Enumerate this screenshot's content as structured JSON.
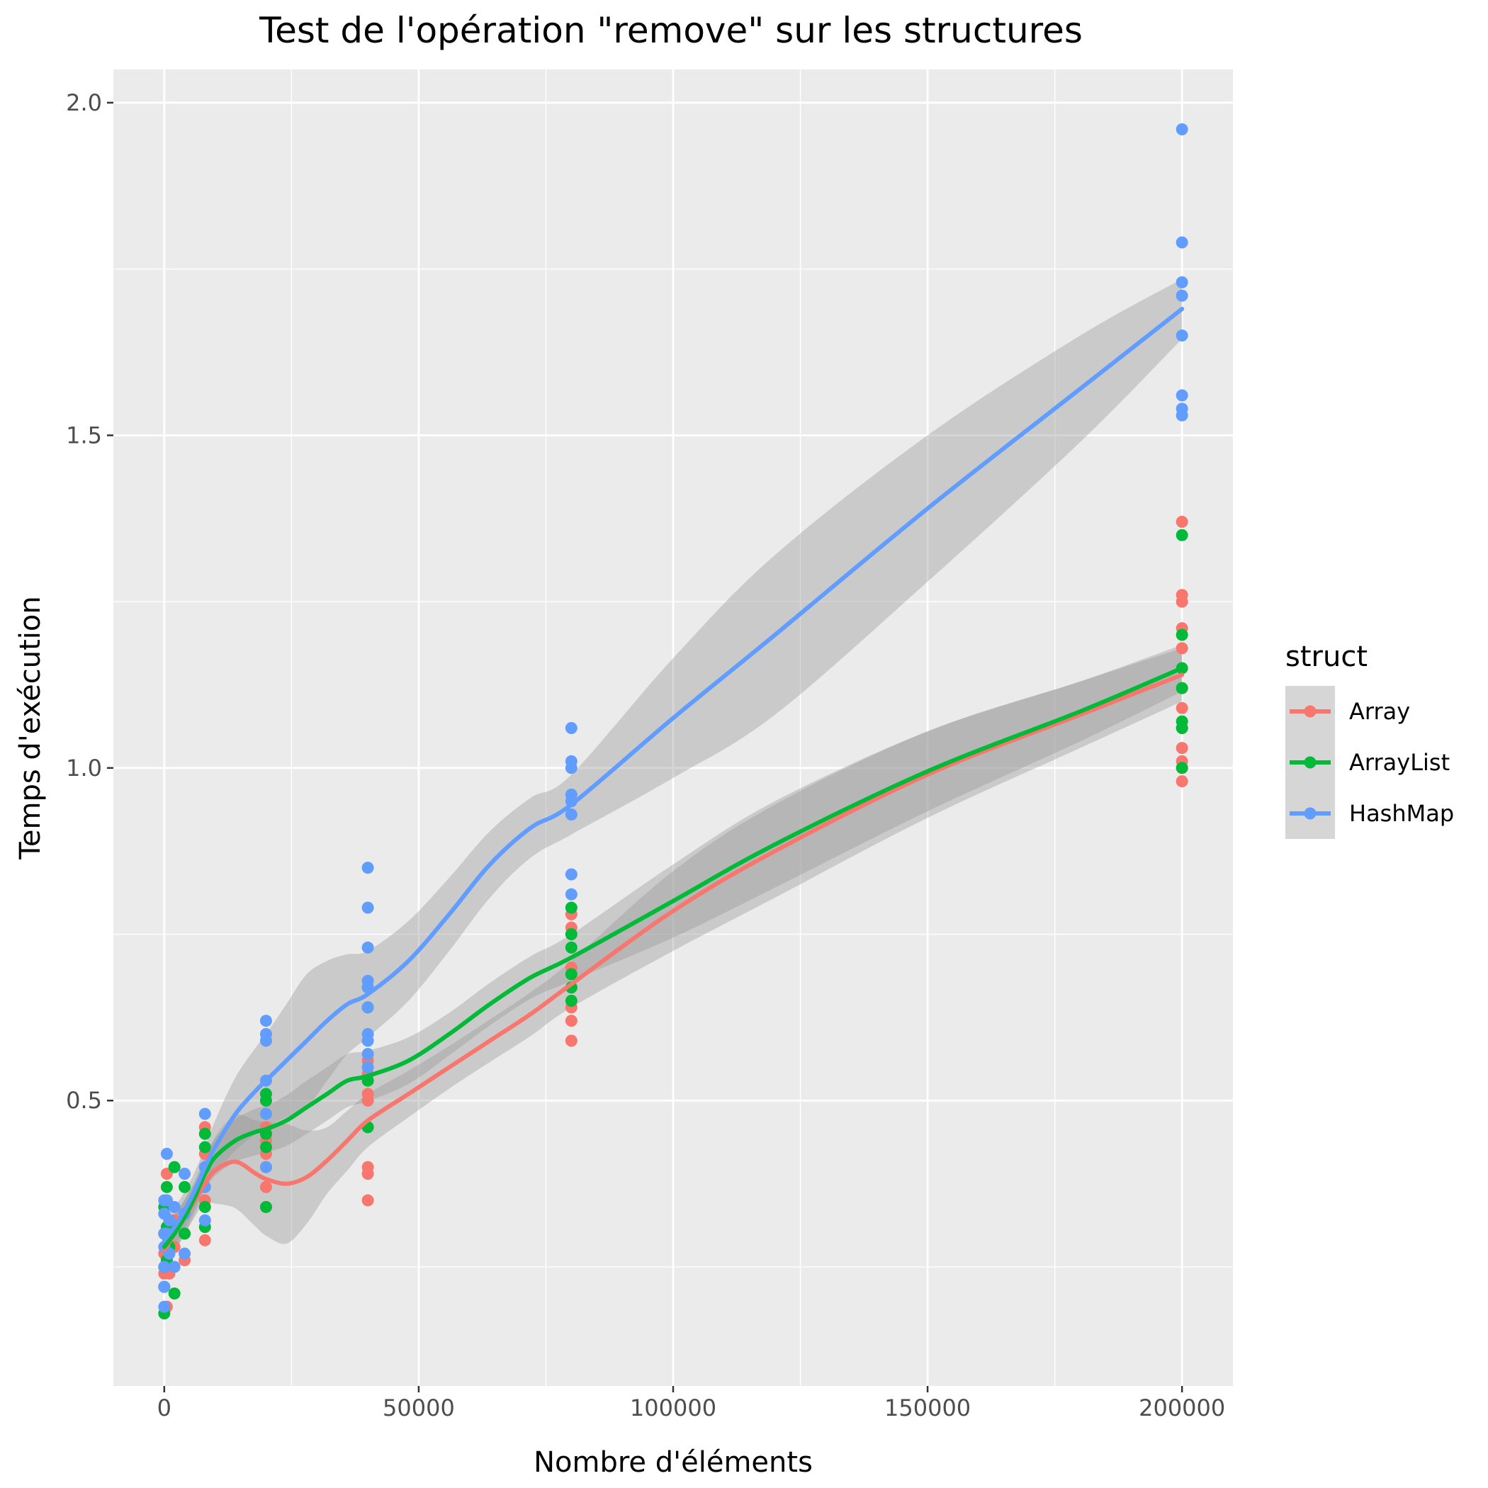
{
  "chart_data": {
    "type": "scatter",
    "title": "Test de l'opération \"remove\" sur les structures",
    "xlabel": "Nombre d'éléments",
    "ylabel": "Temps d'exécution",
    "xlim": [
      -10000,
      210000
    ],
    "ylim": [
      0.071,
      2.05
    ],
    "x_ticks": [
      0,
      50000,
      100000,
      150000,
      200000
    ],
    "x_tick_labels": [
      "0",
      "50000",
      "100000",
      "150000",
      "200000"
    ],
    "y_ticks": [
      0.5,
      1.0,
      1.5,
      2.0
    ],
    "y_tick_labels": [
      "0.5",
      "1.0",
      "1.5",
      "2.0"
    ],
    "grid": true,
    "legend": {
      "title": "struct",
      "position": "right"
    },
    "series": [
      {
        "name": "Array",
        "color": "#F8766D",
        "points": [
          [
            0,
            0.22
          ],
          [
            0,
            0.24
          ],
          [
            0,
            0.27
          ],
          [
            0,
            0.3
          ],
          [
            0,
            0.33
          ],
          [
            500,
            0.39
          ],
          [
            500,
            0.35
          ],
          [
            500,
            0.28
          ],
          [
            500,
            0.19
          ],
          [
            1000,
            0.25
          ],
          [
            1000,
            0.3
          ],
          [
            1000,
            0.24
          ],
          [
            2000,
            0.32
          ],
          [
            2000,
            0.28
          ],
          [
            4000,
            0.26
          ],
          [
            4000,
            0.3
          ],
          [
            4000,
            0.33
          ],
          [
            8000,
            0.29
          ],
          [
            8000,
            0.35
          ],
          [
            8000,
            0.42
          ],
          [
            8000,
            0.46
          ],
          [
            20000,
            0.34
          ],
          [
            20000,
            0.37
          ],
          [
            20000,
            0.4
          ],
          [
            20000,
            0.42
          ],
          [
            20000,
            0.44
          ],
          [
            20000,
            0.46
          ],
          [
            40000,
            0.35
          ],
          [
            40000,
            0.39
          ],
          [
            40000,
            0.4
          ],
          [
            40000,
            0.46
          ],
          [
            40000,
            0.5
          ],
          [
            40000,
            0.51
          ],
          [
            40000,
            0.54
          ],
          [
            40000,
            0.56
          ],
          [
            80000,
            0.59
          ],
          [
            80000,
            0.62
          ],
          [
            80000,
            0.64
          ],
          [
            80000,
            0.67
          ],
          [
            80000,
            0.7
          ],
          [
            80000,
            0.76
          ],
          [
            80000,
            0.78
          ],
          [
            200000,
            0.98
          ],
          [
            200000,
            1.0
          ],
          [
            200000,
            1.01
          ],
          [
            200000,
            1.03
          ],
          [
            200000,
            1.06
          ],
          [
            200000,
            1.09
          ],
          [
            200000,
            1.18
          ],
          [
            200000,
            1.21
          ],
          [
            200000,
            1.25
          ],
          [
            200000,
            1.26
          ],
          [
            200000,
            1.37
          ]
        ],
        "smooth": [
          [
            0,
            0.275
          ],
          [
            2000,
            0.3
          ],
          [
            4000,
            0.325
          ],
          [
            6000,
            0.35
          ],
          [
            8000,
            0.375
          ],
          [
            10000,
            0.395
          ],
          [
            14000,
            0.408
          ],
          [
            18000,
            0.39
          ],
          [
            20000,
            0.382
          ],
          [
            24000,
            0.375
          ],
          [
            28000,
            0.385
          ],
          [
            32000,
            0.41
          ],
          [
            36000,
            0.44
          ],
          [
            40000,
            0.47
          ],
          [
            48000,
            0.51
          ],
          [
            56000,
            0.55
          ],
          [
            64000,
            0.59
          ],
          [
            72000,
            0.63
          ],
          [
            80000,
            0.675
          ],
          [
            100000,
            0.785
          ],
          [
            120000,
            0.875
          ],
          [
            150000,
            0.99
          ],
          [
            180000,
            1.08
          ],
          [
            200000,
            1.14
          ]
        ],
        "band_width": [
          0.03,
          0.028,
          0.026,
          0.025,
          0.028,
          0.05,
          0.07,
          0.08,
          0.085,
          0.09,
          0.07,
          0.05,
          0.045,
          0.04,
          0.035,
          0.032,
          0.032,
          0.033,
          0.035,
          0.06,
          0.07,
          0.065,
          0.05,
          0.04
        ]
      },
      {
        "name": "ArrayList",
        "color": "#00BA38",
        "points": [
          [
            0,
            0.18
          ],
          [
            0,
            0.22
          ],
          [
            0,
            0.25
          ],
          [
            0,
            0.3
          ],
          [
            0,
            0.34
          ],
          [
            500,
            0.37
          ],
          [
            500,
            0.31
          ],
          [
            500,
            0.26
          ],
          [
            1000,
            0.28
          ],
          [
            1000,
            0.32
          ],
          [
            2000,
            0.21
          ],
          [
            2000,
            0.4
          ],
          [
            4000,
            0.37
          ],
          [
            4000,
            0.3
          ],
          [
            8000,
            0.31
          ],
          [
            8000,
            0.34
          ],
          [
            8000,
            0.43
          ],
          [
            8000,
            0.45
          ],
          [
            20000,
            0.34
          ],
          [
            20000,
            0.43
          ],
          [
            20000,
            0.45
          ],
          [
            20000,
            0.5
          ],
          [
            20000,
            0.51
          ],
          [
            40000,
            0.46
          ],
          [
            40000,
            0.53
          ],
          [
            40000,
            0.64
          ],
          [
            40000,
            0.67
          ],
          [
            80000,
            0.65
          ],
          [
            80000,
            0.67
          ],
          [
            80000,
            0.69
          ],
          [
            80000,
            0.73
          ],
          [
            80000,
            0.75
          ],
          [
            80000,
            0.79
          ],
          [
            200000,
            1.0
          ],
          [
            200000,
            1.06
          ],
          [
            200000,
            1.07
          ],
          [
            200000,
            1.12
          ],
          [
            200000,
            1.15
          ],
          [
            200000,
            1.2
          ],
          [
            200000,
            1.35
          ]
        ],
        "smooth": [
          [
            0,
            0.28
          ],
          [
            2000,
            0.3
          ],
          [
            4000,
            0.325
          ],
          [
            6000,
            0.355
          ],
          [
            8000,
            0.39
          ],
          [
            10000,
            0.415
          ],
          [
            14000,
            0.44
          ],
          [
            18000,
            0.453
          ],
          [
            20000,
            0.457
          ],
          [
            24000,
            0.47
          ],
          [
            28000,
            0.49
          ],
          [
            32000,
            0.51
          ],
          [
            36000,
            0.53
          ],
          [
            40000,
            0.537
          ],
          [
            48000,
            0.56
          ],
          [
            56000,
            0.6
          ],
          [
            64000,
            0.645
          ],
          [
            72000,
            0.685
          ],
          [
            80000,
            0.715
          ],
          [
            100000,
            0.8
          ],
          [
            120000,
            0.885
          ],
          [
            150000,
            0.995
          ],
          [
            180000,
            1.085
          ],
          [
            200000,
            1.15
          ]
        ],
        "band_width": [
          0.03,
          0.028,
          0.026,
          0.025,
          0.025,
          0.028,
          0.032,
          0.035,
          0.035,
          0.038,
          0.04,
          0.04,
          0.04,
          0.038,
          0.035,
          0.032,
          0.032,
          0.032,
          0.035,
          0.055,
          0.065,
          0.06,
          0.045,
          0.035
        ]
      },
      {
        "name": "HashMap",
        "color": "#619CFF",
        "points": [
          [
            0,
            0.19
          ],
          [
            0,
            0.22
          ],
          [
            0,
            0.25
          ],
          [
            0,
            0.28
          ],
          [
            0,
            0.3
          ],
          [
            0,
            0.33
          ],
          [
            0,
            0.35
          ],
          [
            500,
            0.42
          ],
          [
            500,
            0.35
          ],
          [
            500,
            0.3
          ],
          [
            1000,
            0.32
          ],
          [
            1000,
            0.27
          ],
          [
            2000,
            0.25
          ],
          [
            2000,
            0.34
          ],
          [
            4000,
            0.39
          ],
          [
            4000,
            0.33
          ],
          [
            4000,
            0.27
          ],
          [
            8000,
            0.32
          ],
          [
            8000,
            0.37
          ],
          [
            8000,
            0.4
          ],
          [
            8000,
            0.48
          ],
          [
            20000,
            0.4
          ],
          [
            20000,
            0.48
          ],
          [
            20000,
            0.53
          ],
          [
            20000,
            0.59
          ],
          [
            20000,
            0.6
          ],
          [
            20000,
            0.62
          ],
          [
            40000,
            0.55
          ],
          [
            40000,
            0.57
          ],
          [
            40000,
            0.59
          ],
          [
            40000,
            0.6
          ],
          [
            40000,
            0.64
          ],
          [
            40000,
            0.67
          ],
          [
            40000,
            0.68
          ],
          [
            40000,
            0.73
          ],
          [
            40000,
            0.79
          ],
          [
            40000,
            0.85
          ],
          [
            80000,
            0.81
          ],
          [
            80000,
            0.84
          ],
          [
            80000,
            0.93
          ],
          [
            80000,
            0.95
          ],
          [
            80000,
            0.96
          ],
          [
            80000,
            1.0
          ],
          [
            80000,
            1.01
          ],
          [
            80000,
            1.06
          ],
          [
            200000,
            1.53
          ],
          [
            200000,
            1.54
          ],
          [
            200000,
            1.56
          ],
          [
            200000,
            1.65
          ],
          [
            200000,
            1.71
          ],
          [
            200000,
            1.73
          ],
          [
            200000,
            1.79
          ],
          [
            200000,
            1.96
          ]
        ],
        "smooth": [
          [
            0,
            0.29
          ],
          [
            2000,
            0.31
          ],
          [
            4000,
            0.335
          ],
          [
            6000,
            0.365
          ],
          [
            8000,
            0.4
          ],
          [
            10000,
            0.43
          ],
          [
            14000,
            0.48
          ],
          [
            18000,
            0.515
          ],
          [
            20000,
            0.53
          ],
          [
            24000,
            0.56
          ],
          [
            28000,
            0.59
          ],
          [
            32000,
            0.62
          ],
          [
            36000,
            0.645
          ],
          [
            40000,
            0.66
          ],
          [
            48000,
            0.71
          ],
          [
            56000,
            0.78
          ],
          [
            64000,
            0.855
          ],
          [
            72000,
            0.91
          ],
          [
            80000,
            0.945
          ],
          [
            100000,
            1.075
          ],
          [
            120000,
            1.2
          ],
          [
            150000,
            1.39
          ],
          [
            180000,
            1.57
          ],
          [
            200000,
            1.69
          ]
        ],
        "band_width": [
          0.035,
          0.03,
          0.028,
          0.028,
          0.03,
          0.04,
          0.055,
          0.065,
          0.07,
          0.085,
          0.1,
          0.09,
          0.075,
          0.065,
          0.06,
          0.055,
          0.05,
          0.045,
          0.045,
          0.09,
          0.12,
          0.11,
          0.08,
          0.045
        ]
      }
    ]
  }
}
